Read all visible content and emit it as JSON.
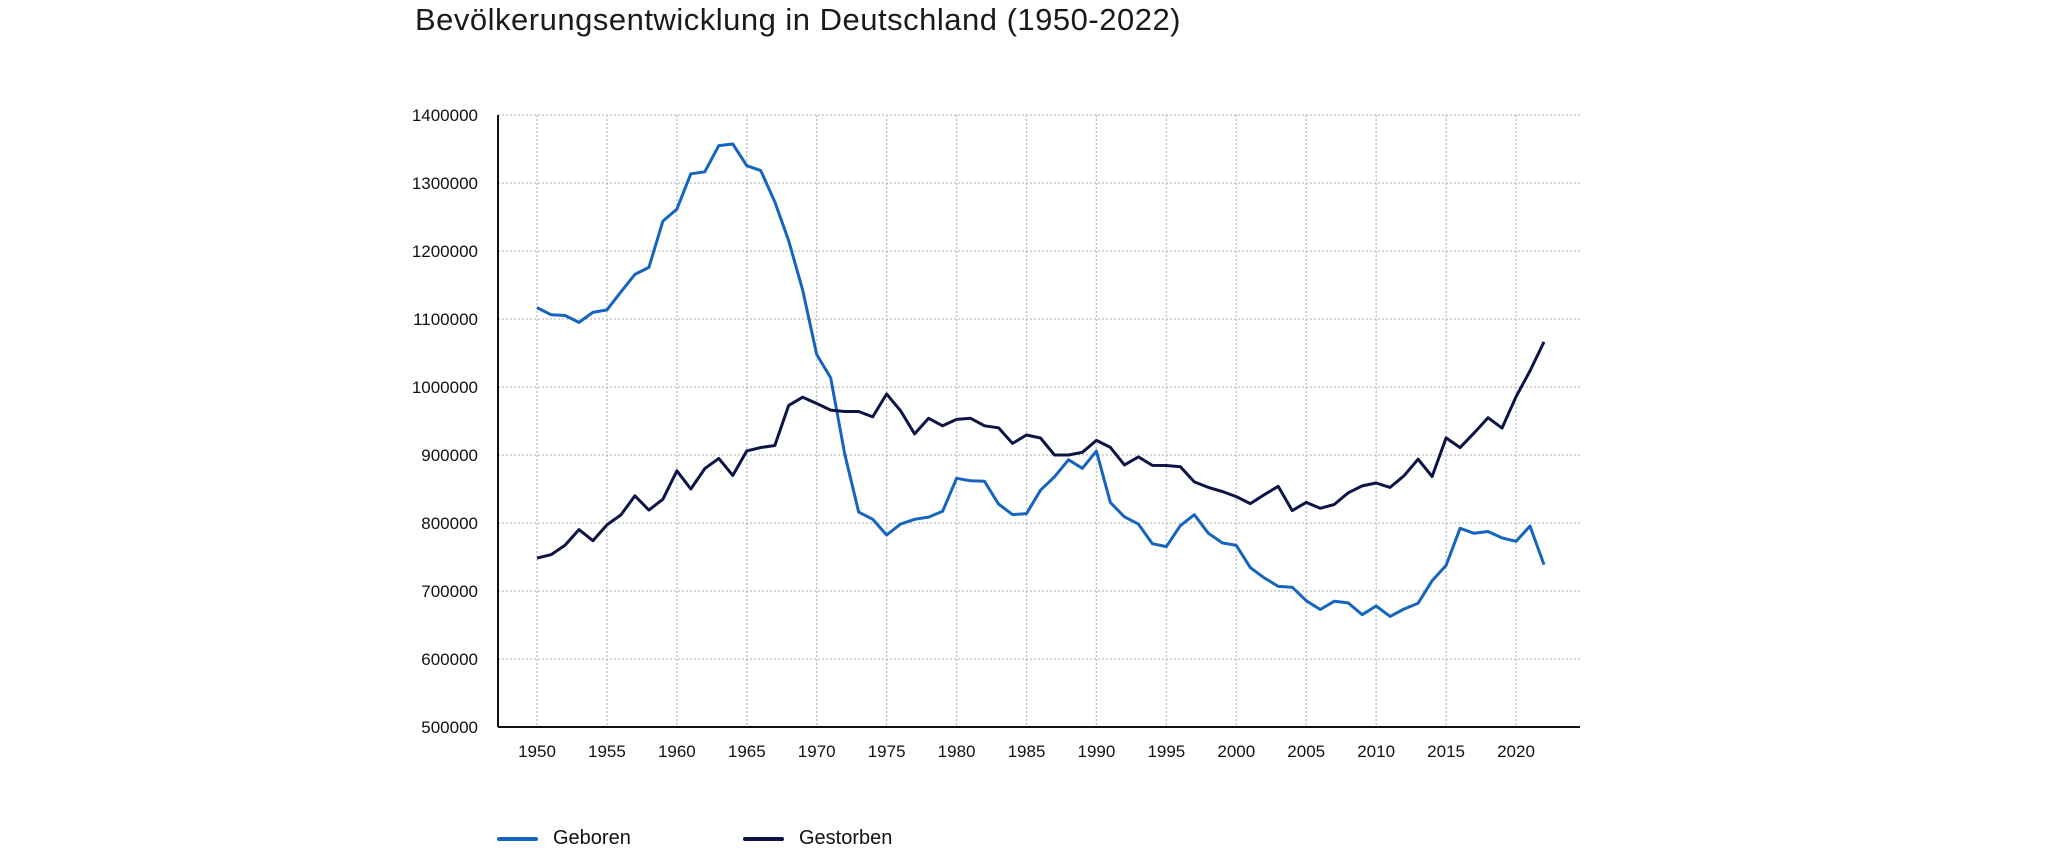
{
  "chart_data": {
    "type": "line",
    "title": "Bevölkerungsentwicklung in Deutschland (1950-2022)",
    "xlabel": "",
    "ylabel": "",
    "xlim": [
      1950,
      2022
    ],
    "ylim": [
      500000,
      1400000
    ],
    "x_ticks": [
      "1950",
      "1955",
      "1960",
      "1965",
      "1970",
      "1975",
      "1980",
      "1985",
      "1990",
      "1995",
      "2000",
      "2005",
      "2010",
      "2015",
      "2020"
    ],
    "y_ticks": [
      "500000",
      "600000",
      "700000",
      "800000",
      "900000",
      "1000000",
      "1100000",
      "1200000",
      "1300000",
      "1400000"
    ],
    "grid": true,
    "legend_position": "bottom-left",
    "x": [
      1950,
      1951,
      1952,
      1953,
      1954,
      1955,
      1956,
      1957,
      1958,
      1959,
      1960,
      1961,
      1962,
      1963,
      1964,
      1965,
      1966,
      1967,
      1968,
      1969,
      1970,
      1971,
      1972,
      1973,
      1974,
      1975,
      1976,
      1977,
      1978,
      1979,
      1980,
      1981,
      1982,
      1983,
      1984,
      1985,
      1986,
      1987,
      1988,
      1989,
      1990,
      1991,
      1992,
      1993,
      1994,
      1995,
      1996,
      1997,
      1998,
      1999,
      2000,
      2001,
      2002,
      2003,
      2004,
      2005,
      2006,
      2007,
      2008,
      2009,
      2010,
      2011,
      2012,
      2013,
      2014,
      2015,
      2016,
      2017,
      2018,
      2019,
      2020,
      2021,
      2022
    ],
    "series": [
      {
        "name": "Geboren",
        "color": "#1565c0",
        "values": [
          1116701,
          1106380,
          1105084,
          1095029,
          1109743,
          1113408,
          1139920,
          1165555,
          1175870,
          1243922,
          1261614,
          1313505,
          1316534,
          1354986,
          1357304,
          1325386,
          1318303,
          1272276,
          1214968,
          1142366,
          1047737,
          1013396,
          901657,
          815969,
          805500,
          782310,
          798334,
          805496,
          808619,
          817217,
          865789,
          862100,
          861275,
          827933,
          812292,
          813803,
          848232,
          867969,
          892993,
          880459,
          905675,
          830019,
          809114,
          798447,
          769603,
          765221,
          796013,
          812173,
          785034,
          770744,
          766999,
          734475,
          719250,
          706721,
          705622,
          685795,
          672724,
          684862,
          682514,
          665126,
          677947,
          662685,
          673544,
          682069,
          714927,
          737575,
          792141,
          784901,
          787523,
          778090,
          773144,
          795492,
          738819
        ]
      },
      {
        "name": "Gestorben",
        "color": "#0d1446",
        "values": [
          748329,
          753382,
          767209,
          790346,
          773976,
          797254,
          811860,
          840000,
          819000,
          835000,
          876721,
          850000,
          880000,
          895000,
          870000,
          906000,
          911000,
          914000,
          973000,
          985000,
          975664,
          966000,
          964000,
          964000,
          956000,
          989648,
          965000,
          931000,
          954000,
          943000,
          952371,
          954000,
          943000,
          940000,
          917000,
          929425,
          925000,
          900000,
          900000,
          904000,
          921445,
          911245,
          885443,
          897270,
          884661,
          884588,
          882843,
          860389,
          852382,
          846330,
          838797,
          828541,
          841686,
          853946,
          818271,
          830227,
          821627,
          827155,
          844439,
          854544,
          858768,
          852328,
          869582,
          893825,
          868356,
          925200,
          910899,
          932263,
          954874,
          939520,
          985572,
          1023687,
          1066341
        ]
      }
    ]
  }
}
